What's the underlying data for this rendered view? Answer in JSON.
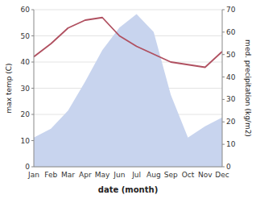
{
  "chart_data": {
    "type": "line",
    "x_label": "date (month)",
    "y_label": "max temp (C)",
    "y2_label": "med. precipitation (kg/m2)",
    "categories": [
      "Jan",
      "Feb",
      "Mar",
      "Apr",
      "May",
      "Jun",
      "Jul",
      "Aug",
      "Sep",
      "Oct",
      "Nov",
      "Dec"
    ],
    "series": [
      {
        "type": "area",
        "axis": "y2",
        "color": "#c8d4ee",
        "values": [
          13,
          17,
          25,
          38,
          52,
          62,
          68,
          60,
          32,
          13,
          18,
          22
        ]
      },
      {
        "type": "line",
        "color": "#b05060",
        "values": [
          42,
          47,
          53,
          56,
          57,
          50,
          46,
          43,
          40,
          39,
          38,
          44
        ]
      }
    ],
    "ylim": [
      0,
      60
    ],
    "yticks": [
      0,
      10,
      20,
      30,
      40,
      50,
      60
    ],
    "y2lim": [
      0,
      70
    ],
    "y2ticks": [
      0,
      10,
      20,
      30,
      40,
      50,
      60,
      70
    ],
    "grid": true
  }
}
